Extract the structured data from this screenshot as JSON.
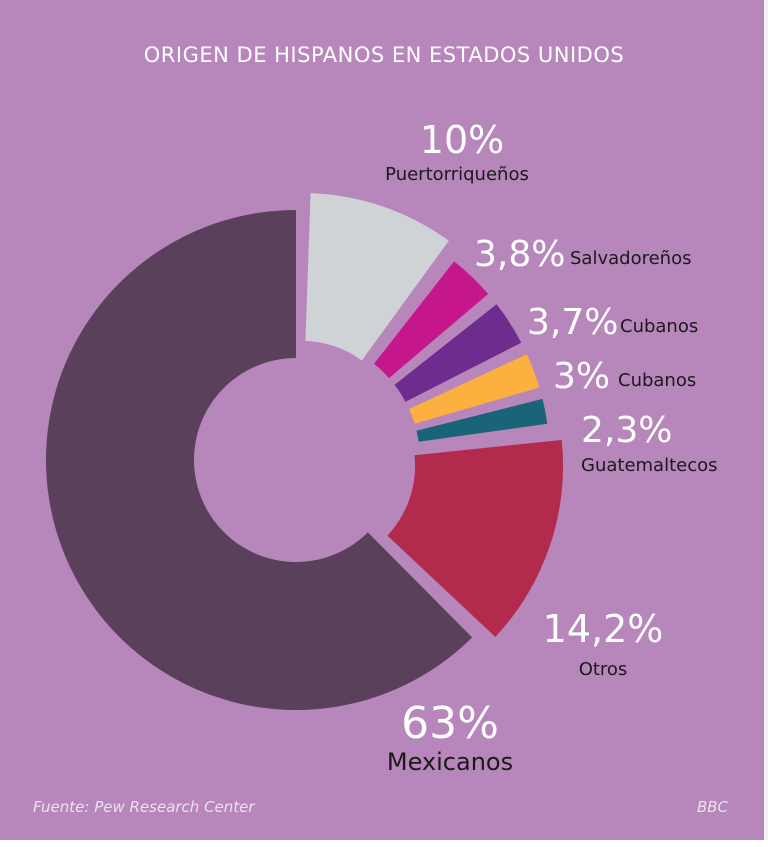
{
  "title": "ORIGEN DE HISPANOS EN ESTADOS UNIDOS",
  "source": "Fuente: Pew Research Center",
  "brand": "BBC",
  "chart_data": {
    "type": "pie",
    "title": "ORIGEN DE HISPANOS EN ESTADOS UNIDOS",
    "slices": [
      {
        "label": "Puertorriqueños",
        "value": 10.0,
        "display": "10%",
        "color": "#d0d3d6"
      },
      {
        "label": "Salvadoreños",
        "value": 3.8,
        "display": "3,8%",
        "color": "#c5168c"
      },
      {
        "label": "Cubanos",
        "value": 3.7,
        "display": "3,7%",
        "color": "#6e2d8e"
      },
      {
        "label": "Cubanos",
        "value": 3.0,
        "display": "3%",
        "color": "#fbb040"
      },
      {
        "label": "Guatemaltecos",
        "value": 2.3,
        "display": "2,3%",
        "color": "#1a6478"
      },
      {
        "label": "Otros",
        "value": 14.2,
        "display": "14,2%",
        "color": "#b22b4c"
      },
      {
        "label": "Mexicanos",
        "value": 63.0,
        "display": "63%",
        "color": "#5b405c"
      }
    ]
  },
  "colors": {
    "background": "#b786bb",
    "text": "#ffffff",
    "label_text": "#1a1a1a"
  }
}
